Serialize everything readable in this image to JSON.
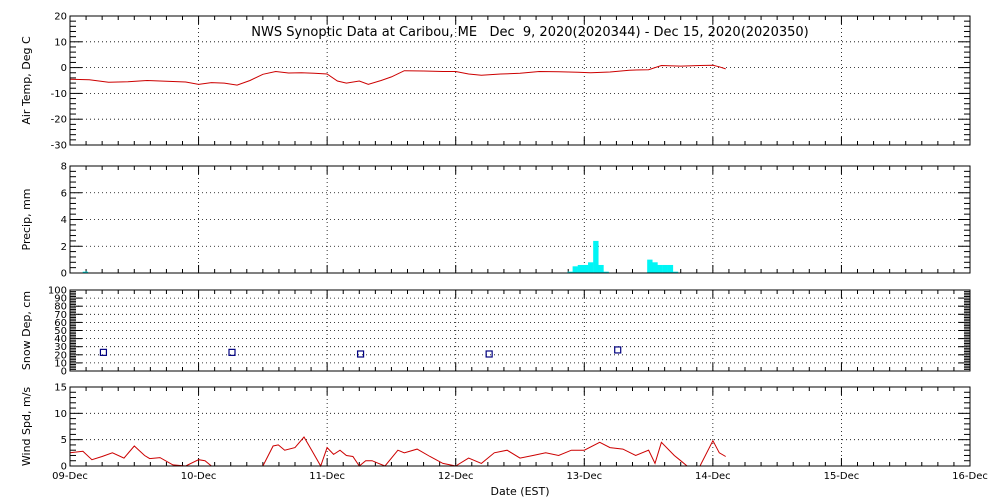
{
  "chart_data": {
    "type": "multi-panel time series",
    "title": "NWS Synoptic Data at Caribou, ME   Dec  9, 2020(2020344) - Dec 15, 2020(2020350)",
    "xlabel": "Date (EST)",
    "x_ticks": [
      "09-Dec",
      "10-Dec",
      "11-Dec",
      "12-Dec",
      "13-Dec",
      "14-Dec",
      "15-Dec",
      "16-Dec"
    ],
    "xlim_days": [
      0,
      7
    ],
    "grid": true,
    "panels": [
      {
        "id": "temp",
        "type": "line",
        "ylabel": "Air Temp, Deg C",
        "ylim": [
          -30,
          20
        ],
        "yticks": [
          -30,
          -20,
          -10,
          0,
          10,
          20
        ],
        "color": "#cc0000",
        "x": [
          0,
          0.15,
          0.3,
          0.45,
          0.6,
          0.75,
          0.9,
          1.0,
          1.1,
          1.2,
          1.3,
          1.4,
          1.5,
          1.6,
          1.7,
          1.8,
          1.9,
          2.0,
          2.08,
          2.15,
          2.25,
          2.32,
          2.42,
          2.5,
          2.6,
          2.75,
          2.9,
          3.0,
          3.1,
          3.2,
          3.35,
          3.5,
          3.65,
          3.8,
          3.95,
          4.05,
          4.2,
          4.35,
          4.5,
          4.6,
          4.75,
          4.9,
          5.0,
          5.05,
          5.1
        ],
        "y": [
          -4.5,
          -4.7,
          -5.7,
          -5.5,
          -5,
          -5.3,
          -5.6,
          -6.5,
          -5.8,
          -6,
          -6.8,
          -5,
          -2.6,
          -1.5,
          -2.1,
          -2,
          -2.2,
          -2.5,
          -5.2,
          -6,
          -5.2,
          -6.5,
          -5,
          -3.6,
          -1.2,
          -1.3,
          -1.5,
          -1.5,
          -2.5,
          -3,
          -2.5,
          -2.2,
          -1.5,
          -1.6,
          -1.8,
          -2,
          -1.7,
          -1,
          -0.8,
          0.8,
          0.6,
          0.8,
          0.9,
          0.3,
          -0.5
        ]
      },
      {
        "id": "precip",
        "type": "bar",
        "ylabel": "Precip, mm",
        "ylim": [
          0,
          8
        ],
        "yticks": [
          0,
          2,
          4,
          6,
          8
        ],
        "color": "#00f5f5",
        "bar_width_days": 0.0417,
        "x": [
          0.12,
          3.89,
          3.93,
          3.97,
          4.01,
          4.05,
          4.09,
          4.13,
          4.17,
          4.51,
          4.55,
          4.59,
          4.63,
          4.67,
          4.71
        ],
        "y": [
          0.1,
          0.1,
          0.5,
          0.6,
          0.6,
          0.8,
          2.4,
          0.6,
          0.1,
          1.0,
          0.8,
          0.6,
          0.6,
          0.6,
          0.1
        ]
      },
      {
        "id": "snow",
        "type": "scatter",
        "ylabel": "Snow Dep, cm",
        "ylim": [
          0,
          100
        ],
        "yticks": [
          0,
          10,
          20,
          30,
          40,
          50,
          60,
          70,
          80,
          90,
          100
        ],
        "color": "#000080",
        "marker": "square",
        "x": [
          0.26,
          1.26,
          2.26,
          3.26,
          4.26
        ],
        "y": [
          23,
          23,
          21,
          21,
          26
        ]
      },
      {
        "id": "wind",
        "type": "line",
        "ylabel": "Wind Spd, m/s",
        "ylim": [
          0,
          15
        ],
        "yticks": [
          0,
          5,
          10,
          15
        ],
        "color": "#cc0000",
        "x": [
          0,
          0.1,
          0.17,
          0.25,
          0.33,
          0.42,
          0.5,
          0.58,
          0.62,
          0.7,
          0.8,
          0.9,
          1.0,
          1.05,
          1.1,
          1.15,
          1.3,
          1.42,
          1.5,
          1.58,
          1.62,
          1.67,
          1.75,
          1.82,
          1.88,
          1.95,
          2.0,
          2.05,
          2.1,
          2.15,
          2.2,
          2.25,
          2.3,
          2.35,
          2.4,
          2.45,
          2.55,
          2.6,
          2.7,
          2.8,
          2.9,
          3.0,
          3.1,
          3.2,
          3.3,
          3.4,
          3.5,
          3.6,
          3.7,
          3.8,
          3.9,
          4.0,
          4.12,
          4.2,
          4.3,
          4.4,
          4.5,
          4.55,
          4.6,
          4.7,
          4.75,
          4.8,
          4.9,
          5.0,
          5.05,
          5.1
        ],
        "y": [
          2.5,
          2.8,
          1.2,
          1.8,
          2.5,
          1.5,
          3.8,
          2.0,
          1.4,
          1.6,
          0.2,
          0,
          1.2,
          1.0,
          0,
          0,
          0,
          0,
          0,
          3.8,
          4.0,
          3.0,
          3.5,
          5.5,
          3.0,
          0,
          3.5,
          2.2,
          3.0,
          2.0,
          1.8,
          0,
          1.0,
          1.0,
          0.5,
          0,
          3.0,
          2.5,
          3.2,
          1.8,
          0.5,
          0,
          1.5,
          0.5,
          2.5,
          3.0,
          1.5,
          2.0,
          2.5,
          2.0,
          3.0,
          3.0,
          4.5,
          3.5,
          3.2,
          2.0,
          3.0,
          0.5,
          4.5,
          2.0,
          1.0,
          0,
          0,
          4.8,
          2.5,
          1.8
        ]
      }
    ]
  }
}
